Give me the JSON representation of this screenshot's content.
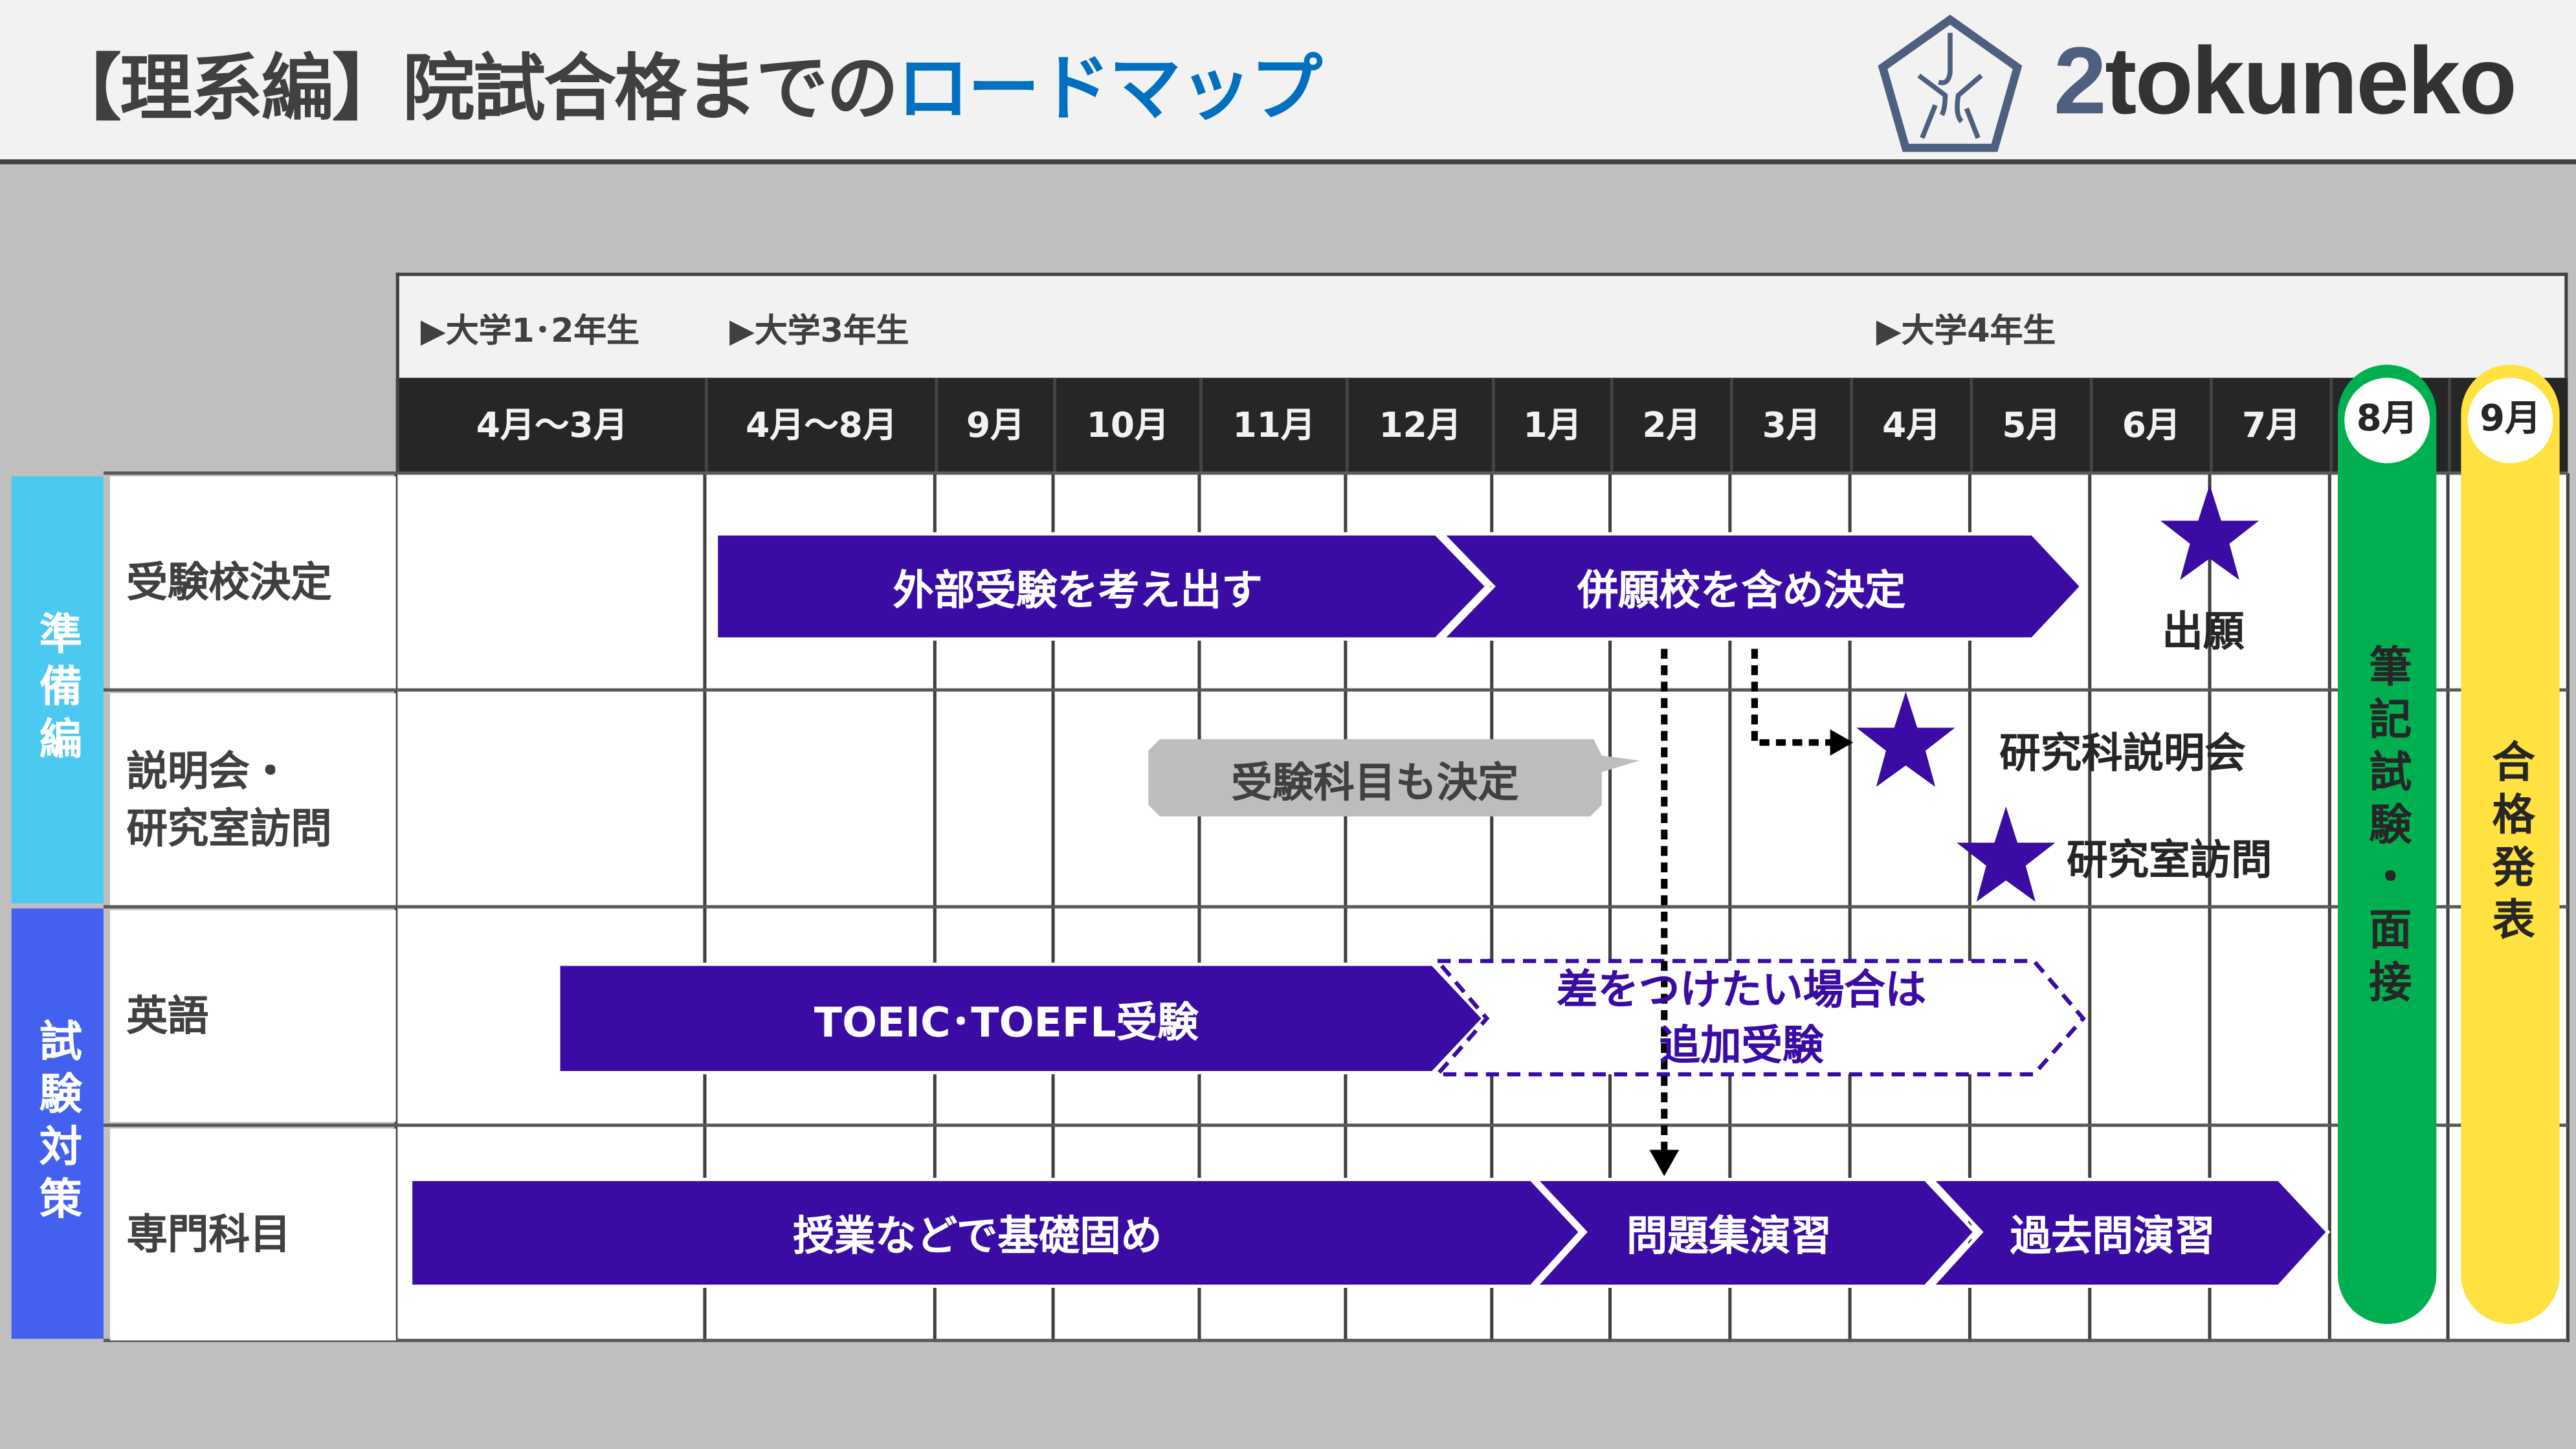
{
  "title": {
    "prefix": "【理系編】院試合格までの",
    "accent": "ロードマップ"
  },
  "logo": {
    "two": "2",
    "rest": "tokuneko"
  },
  "years": [
    "▶大学1･2年生",
    "▶大学3年生",
    "▶大学4年生"
  ],
  "months": [
    "4月〜3月",
    "4月〜8月",
    "9月",
    "10月",
    "11月",
    "12月",
    "1月",
    "2月",
    "3月",
    "4月",
    "5月",
    "6月",
    "7月",
    "8月",
    "9月"
  ],
  "categories": [
    {
      "label": "準備編",
      "color": "#4cc9f0"
    },
    {
      "label": "試験対策",
      "color": "#4361ee"
    }
  ],
  "rows": [
    "受験校決定",
    "説明会・\n研究室訪問",
    "英語",
    "専門科目"
  ],
  "bars": {
    "consider_external": "外部受験を考え出す",
    "decide_schools": "併願校を含め決定",
    "toeic": "TOEIC･TOEFL受験",
    "extra_exam_line1": "差をつけたい場合は",
    "extra_exam_line2": "追加受験",
    "basics": "授業などで基礎固め",
    "problem_sets": "問題集演習",
    "past_exams": "過去問演習"
  },
  "callout": "受験科目も決定",
  "milestones": {
    "apply": "出願",
    "info_session": "研究科説明会",
    "lab_visit": "研究室訪問"
  },
  "exam": {
    "month": "8月",
    "label": "筆記試験・面接"
  },
  "result": {
    "month": "9月",
    "label": "合格発表"
  },
  "colors": {
    "bar": "#3a0ca3",
    "exam": "#00b050",
    "result": "#ffe13f",
    "accent": "#0070c0"
  }
}
